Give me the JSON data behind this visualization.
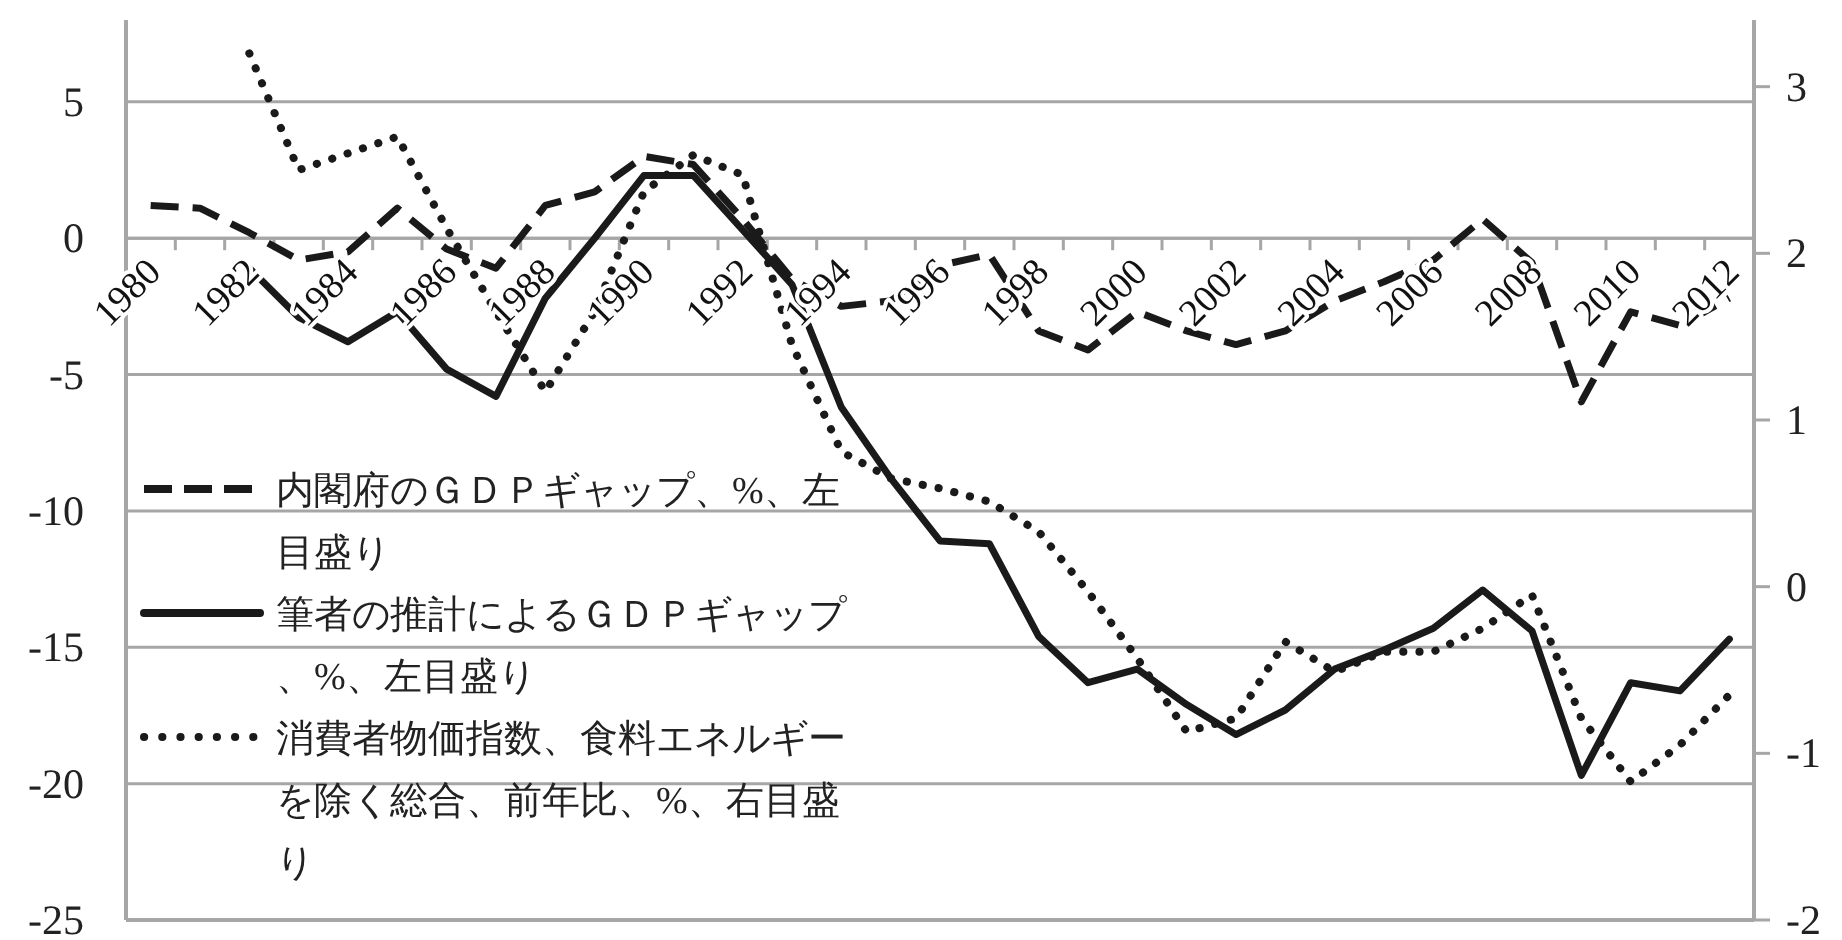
{
  "chart_data": {
    "type": "line",
    "categories": [
      "1980",
      null,
      "1982",
      null,
      "1984",
      null,
      "1986",
      null,
      "1988",
      null,
      "1990",
      null,
      "1992",
      null,
      "1994",
      null,
      "1996",
      null,
      "1998",
      null,
      "2000",
      null,
      "2002",
      null,
      "2004",
      null,
      "2006",
      null,
      "2008",
      null,
      "2010",
      null,
      "2012"
    ],
    "series": [
      {
        "name": "内閣府のＧＤＰギャップ、%、左目盛り",
        "color": "#1a1a1a",
        "line_style": "dashed",
        "values": [
          1.2,
          1.1,
          0.2,
          -0.8,
          -0.5,
          1.1,
          -0.4,
          -1.1,
          1.2,
          1.7,
          3.0,
          2.7,
          0.7,
          -1.5,
          -2.5,
          -2.3,
          -1.0,
          -0.6,
          -3.4,
          -4.1,
          -2.7,
          -3.4,
          -3.9,
          -3.4,
          -2.3,
          -1.6,
          -0.8,
          0.7,
          -0.9,
          -6.0,
          -2.7,
          -3.2,
          -2.2
        ]
      },
      {
        "name": "筆者の推計によるＧＤＰギャップ、%、左目盛り",
        "color": "#1a1a1a",
        "line_style": "solid",
        "values": [
          null,
          null,
          -1.1,
          -2.9,
          -3.8,
          -2.7,
          -4.8,
          -5.8,
          -2.2,
          0.0,
          2.3,
          2.3,
          0.3,
          -1.7,
          -6.2,
          -8.8,
          -11.1,
          -11.2,
          -14.6,
          -16.3,
          -15.8,
          -17.1,
          -18.2,
          -17.3,
          -15.8,
          -15.1,
          -14.3,
          -12.9,
          -14.4,
          -19.7,
          -16.3,
          -16.6,
          -14.7
        ]
      },
      {
        "name": "消費者物価指数、食料エネルギーを除く総合、前年比、%、右目盛り",
        "color": "#1a1a1a",
        "line_style": "dotted",
        "axis": "y2",
        "values": [
          null,
          null,
          3.2,
          2.5,
          2.6,
          2.7,
          2.15,
          1.65,
          1.17,
          1.65,
          2.37,
          2.59,
          2.47,
          1.45,
          0.81,
          0.65,
          0.59,
          0.51,
          0.33,
          -0.03,
          -0.43,
          -0.87,
          -0.79,
          -0.33,
          -0.51,
          -0.39,
          -0.39,
          -0.25,
          -0.05,
          -0.79,
          -1.17,
          -0.95,
          -0.65
        ]
      }
    ],
    "ylim": [
      -25,
      8
    ],
    "yticks": [
      -25,
      -20,
      -15,
      -10,
      -5,
      0,
      5
    ],
    "y2lim": [
      -2,
      3.4
    ],
    "y2ticks": [
      -2,
      -1,
      0,
      1,
      2,
      3
    ],
    "grid": "y",
    "legend": "bottom left"
  }
}
